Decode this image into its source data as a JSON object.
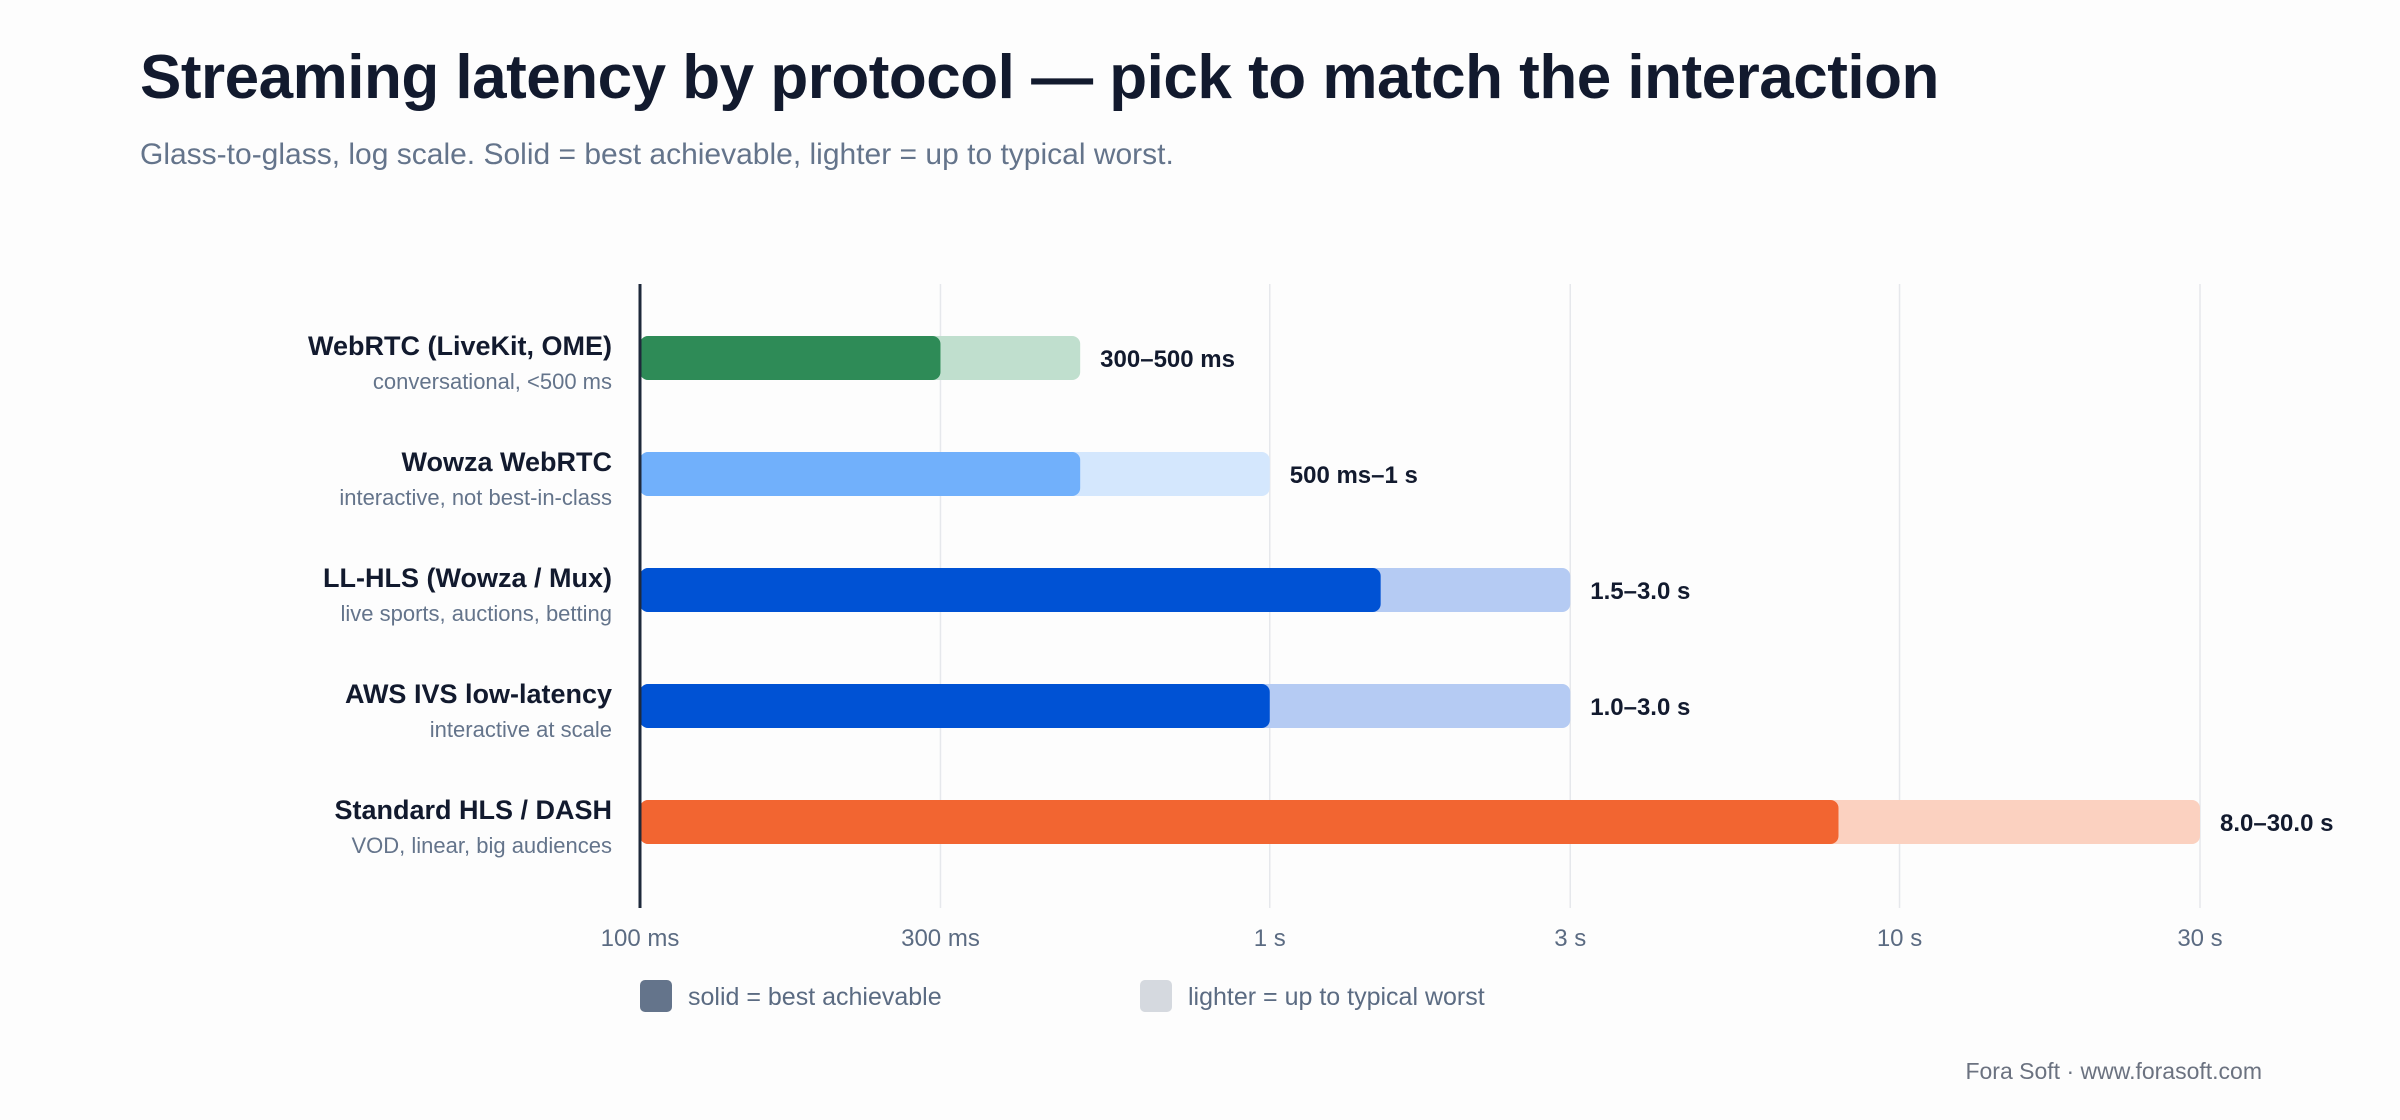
{
  "title": "Streaming latency by protocol — pick to match the interaction",
  "subtitle": "Glass-to-glass, log scale. Solid = best achievable, lighter = up to typical worst.",
  "footer": "Fora Soft · www.forasoft.com",
  "chart_data": {
    "type": "bar",
    "orientation": "horizontal",
    "scale": "log",
    "x_unit": "ms",
    "xlim": [
      100,
      30000
    ],
    "grid": true,
    "ticks": [
      {
        "value": 100,
        "label": "100 ms"
      },
      {
        "value": 300,
        "label": "300 ms"
      },
      {
        "value": 1000,
        "label": "1 s"
      },
      {
        "value": 3000,
        "label": "3 s"
      },
      {
        "value": 10000,
        "label": "10 s"
      },
      {
        "value": 30000,
        "label": "30 s"
      }
    ],
    "rows": [
      {
        "name": "WebRTC (LiveKit, OME)",
        "sub": "conversational, <500 ms",
        "best": 300,
        "worst": 500,
        "label": "300–500 ms",
        "color": "#2e8b57",
        "light": "#c0dfce"
      },
      {
        "name": "Wowza WebRTC",
        "sub": "interactive, not best-in-class",
        "best": 500,
        "worst": 1000,
        "label": "500 ms–1 s",
        "color": "#71b0fb",
        "light": "#d4e7fd"
      },
      {
        "name": "LL-HLS (Wowza / Mux)",
        "sub": "live sports, auctions, betting",
        "best": 1500,
        "worst": 3000,
        "label": "1.5–3.0 s",
        "color": "#0052d4",
        "light": "#b5cbf3"
      },
      {
        "name": "AWS IVS low-latency",
        "sub": "interactive at scale",
        "best": 1000,
        "worst": 3000,
        "label": "1.0–3.0 s",
        "color": "#0052d4",
        "light": "#b5cbf3"
      },
      {
        "name": "Standard HLS / DASH",
        "sub": "VOD, linear, big audiences",
        "best": 8000,
        "worst": 30000,
        "label": "8.0–30.0 s",
        "color": "#f26531",
        "light": "#fbd1c0"
      }
    ],
    "legend": [
      {
        "label": "solid = best achievable",
        "color": "#64748b"
      },
      {
        "label": "lighter = up to typical worst",
        "color": "#d5d9df"
      }
    ],
    "legend_position": "bottom"
  }
}
